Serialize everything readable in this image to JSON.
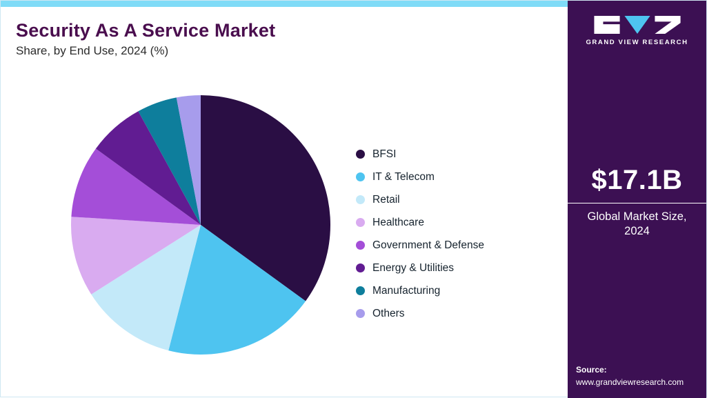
{
  "header": {
    "title": "Security As A Service Market",
    "subtitle": "Share, by End Use, 2024 (%)"
  },
  "chart_data": {
    "type": "pie",
    "title": "Security As A Service Market Share, by End Use, 2024 (%)",
    "start_angle": "top",
    "direction": "clockwise",
    "legend_position": "right",
    "slices": [
      {
        "label": "BFSI",
        "value": 35,
        "color": "#2A0E44"
      },
      {
        "label": "IT & Telecom",
        "value": 19,
        "color": "#4EC4F0"
      },
      {
        "label": "Retail",
        "value": 12,
        "color": "#C3E9F9"
      },
      {
        "label": "Healthcare",
        "value": 10,
        "color": "#D9ABF0"
      },
      {
        "label": "Government & Defense",
        "value": 9,
        "color": "#A44ED8"
      },
      {
        "label": "Energy & Utilities",
        "value": 7,
        "color": "#611C92"
      },
      {
        "label": "Manufacturing",
        "value": 5,
        "color": "#0E7E9C"
      },
      {
        "label": "Others",
        "value": 3,
        "color": "#A79CEC"
      }
    ]
  },
  "sidebar": {
    "logo_text": "GRAND VIEW RESEARCH",
    "market_size": "$17.1B",
    "market_size_caption": "Global Market Size, 2024",
    "source_label": "Source:",
    "source_url": "www.grandviewresearch.com"
  },
  "theme": {
    "topbar_color": "#7FDBF7",
    "sidebar_background": "#3C1053",
    "title_color": "#4A0E4E",
    "logo_accent": "#4EC4F0"
  }
}
